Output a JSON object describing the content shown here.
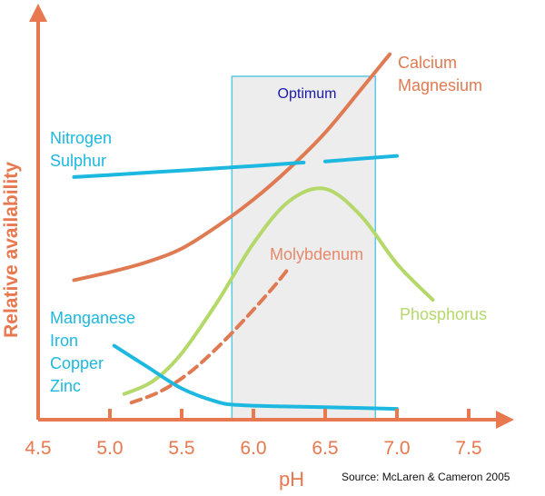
{
  "chart_data": {
    "type": "line",
    "xlabel": "pH",
    "ylabel": "Relative availability",
    "xlim": [
      4.5,
      7.75
    ],
    "ylim": [
      0,
      1
    ],
    "x_ticks": [
      {
        "value": 4.5,
        "label": "4.5"
      },
      {
        "value": 5.0,
        "label": "5.0"
      },
      {
        "value": 5.5,
        "label": "5.5"
      },
      {
        "value": 6.0,
        "label": "6.0"
      },
      {
        "value": 6.5,
        "label": "6.5"
      },
      {
        "value": 7.0,
        "label": "7.0"
      },
      {
        "value": 7.5,
        "label": "7.5"
      }
    ],
    "grid": false,
    "optimum": {
      "label": "Optimum",
      "x_range": [
        5.85,
        6.85
      ]
    },
    "series": [
      {
        "name": "Calcium\nMagnesium",
        "label_lines": [
          "Calcium",
          "Magnesium"
        ],
        "color": "#e07a52",
        "dash": false,
        "x": [
          4.75,
          5.0,
          5.25,
          5.5,
          5.75,
          6.0,
          6.25,
          6.5,
          6.75,
          6.95
        ],
        "y": [
          0.376,
          0.399,
          0.427,
          0.467,
          0.532,
          0.608,
          0.698,
          0.801,
          0.926,
          1.027
        ]
      },
      {
        "name": "Nitrogen\nSulphur",
        "label_lines": [
          "Nitrogen",
          "Sulphur"
        ],
        "color": "#1db8e0",
        "dash": false,
        "gap": [
          6.35,
          6.5
        ],
        "x": [
          4.75,
          5.0,
          5.5,
          6.0,
          6.35,
          6.5,
          7.0
        ],
        "y": [
          0.673,
          0.679,
          0.692,
          0.705,
          0.715,
          0.718,
          0.734
        ]
      },
      {
        "name": "Phosphorus",
        "label_lines": [
          "Phosphorus"
        ],
        "color": "#b5d86a",
        "dash": false,
        "x": [
          5.1,
          5.3,
          5.5,
          5.75,
          6.0,
          6.25,
          6.5,
          6.75,
          7.0,
          7.25
        ],
        "y": [
          0.048,
          0.085,
          0.165,
          0.314,
          0.482,
          0.604,
          0.639,
          0.561,
          0.423,
          0.319
        ]
      },
      {
        "name": "Molybdenum",
        "label_lines": [
          "Molybdenum"
        ],
        "color": "#e07a52",
        "dash": true,
        "x": [
          5.15,
          5.35,
          5.55,
          5.75,
          5.95,
          6.15,
          6.25
        ],
        "y": [
          0.023,
          0.055,
          0.108,
          0.182,
          0.268,
          0.361,
          0.413
        ]
      },
      {
        "name": "Manganese\nIron\nCopper\nZinc",
        "label_lines": [
          "Manganese",
          "Iron",
          "Copper",
          "Zinc"
        ],
        "color": "#1db8e0",
        "dash": false,
        "x": [
          5.03,
          5.25,
          5.5,
          5.75,
          5.9,
          6.2,
          6.6,
          7.0
        ],
        "y": [
          0.187,
          0.129,
          0.064,
          0.025,
          0.016,
          0.012,
          0.009,
          0.005
        ]
      }
    ]
  },
  "source": "Source: McLaren & Cameron 2005",
  "colors": {
    "axis": "#e8784f",
    "optimum_fill": "#ededee",
    "optimum_border": "#5bc8e4",
    "optimum_text": "#1a1aa8"
  }
}
